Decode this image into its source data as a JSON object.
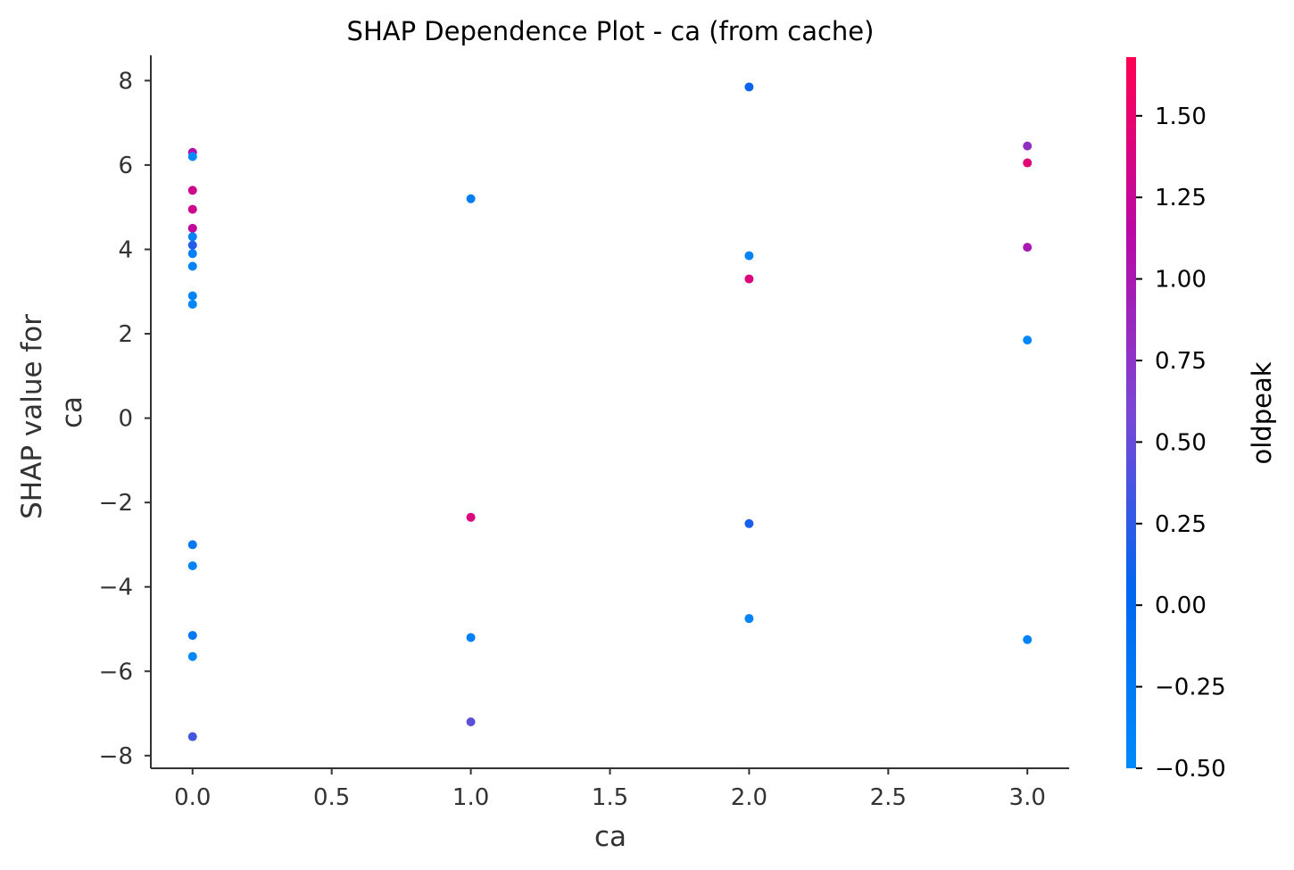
{
  "chart_data": {
    "type": "scatter",
    "title": "SHAP Dependence Plot - ca (from cache)",
    "xlabel": "ca",
    "ylabel_lines": [
      "SHAP value for",
      "ca"
    ],
    "xlim": [
      -0.15,
      3.15
    ],
    "ylim": [
      -8.3,
      8.6
    ],
    "xticks": [
      0.0,
      0.5,
      1.0,
      1.5,
      2.0,
      2.5,
      3.0
    ],
    "xtick_labels": [
      "0.0",
      "0.5",
      "1.0",
      "1.5",
      "2.0",
      "2.5",
      "3.0"
    ],
    "yticks": [
      8,
      6,
      4,
      2,
      0,
      -2,
      -4,
      -6,
      -8
    ],
    "ytick_labels": [
      "8",
      "6",
      "4",
      "2",
      "0",
      "−2",
      "−4",
      "−6",
      "−8"
    ],
    "grid": false,
    "colorbar": {
      "label": "oldpeak",
      "range": [
        -0.5,
        1.68
      ],
      "ticks": [
        1.5,
        1.25,
        1.0,
        0.75,
        0.5,
        0.25,
        0.0,
        -0.25,
        -0.5
      ],
      "tick_labels": [
        "1.50",
        "1.25",
        "1.00",
        "0.75",
        "0.50",
        "0.25",
        "0.00",
        "−0.25",
        "−0.50"
      ],
      "colors": [
        "#008afb",
        "#0066f0",
        "#7a47d4",
        "#b809a6",
        "#ff0052"
      ]
    },
    "points": [
      {
        "x": 0,
        "y": 6.3,
        "c": 1.1
      },
      {
        "x": 0,
        "y": 6.2,
        "c": -0.5
      },
      {
        "x": 0,
        "y": 5.4,
        "c": 1.3
      },
      {
        "x": 0,
        "y": 4.95,
        "c": 1.3
      },
      {
        "x": 0,
        "y": 4.5,
        "c": 1.2
      },
      {
        "x": 0,
        "y": 4.3,
        "c": -0.4
      },
      {
        "x": 0,
        "y": 4.1,
        "c": 0.2
      },
      {
        "x": 0,
        "y": 3.9,
        "c": -0.35
      },
      {
        "x": 0,
        "y": 3.6,
        "c": -0.4
      },
      {
        "x": 0,
        "y": 2.9,
        "c": -0.4
      },
      {
        "x": 0,
        "y": 2.7,
        "c": -0.45
      },
      {
        "x": 0,
        "y": -3.0,
        "c": -0.2
      },
      {
        "x": 0,
        "y": -3.5,
        "c": -0.4
      },
      {
        "x": 0,
        "y": -5.15,
        "c": -0.2
      },
      {
        "x": 0,
        "y": -5.65,
        "c": -0.45
      },
      {
        "x": 0,
        "y": -7.55,
        "c": 0.35
      },
      {
        "x": 1,
        "y": 5.2,
        "c": -0.3
      },
      {
        "x": 1,
        "y": -2.35,
        "c": 1.4
      },
      {
        "x": 1,
        "y": -5.2,
        "c": -0.35
      },
      {
        "x": 1,
        "y": -7.2,
        "c": 0.45
      },
      {
        "x": 2,
        "y": 7.85,
        "c": 0.1
      },
      {
        "x": 2,
        "y": 3.85,
        "c": -0.4
      },
      {
        "x": 2,
        "y": 3.3,
        "c": 1.4
      },
      {
        "x": 2,
        "y": -2.5,
        "c": 0.15
      },
      {
        "x": 2,
        "y": -4.75,
        "c": -0.4
      },
      {
        "x": 3,
        "y": 6.45,
        "c": 0.8
      },
      {
        "x": 3,
        "y": 6.05,
        "c": 1.45
      },
      {
        "x": 3,
        "y": 4.05,
        "c": 1.0
      },
      {
        "x": 3,
        "y": 1.85,
        "c": -0.45
      },
      {
        "x": 3,
        "y": -5.25,
        "c": -0.4
      }
    ]
  }
}
